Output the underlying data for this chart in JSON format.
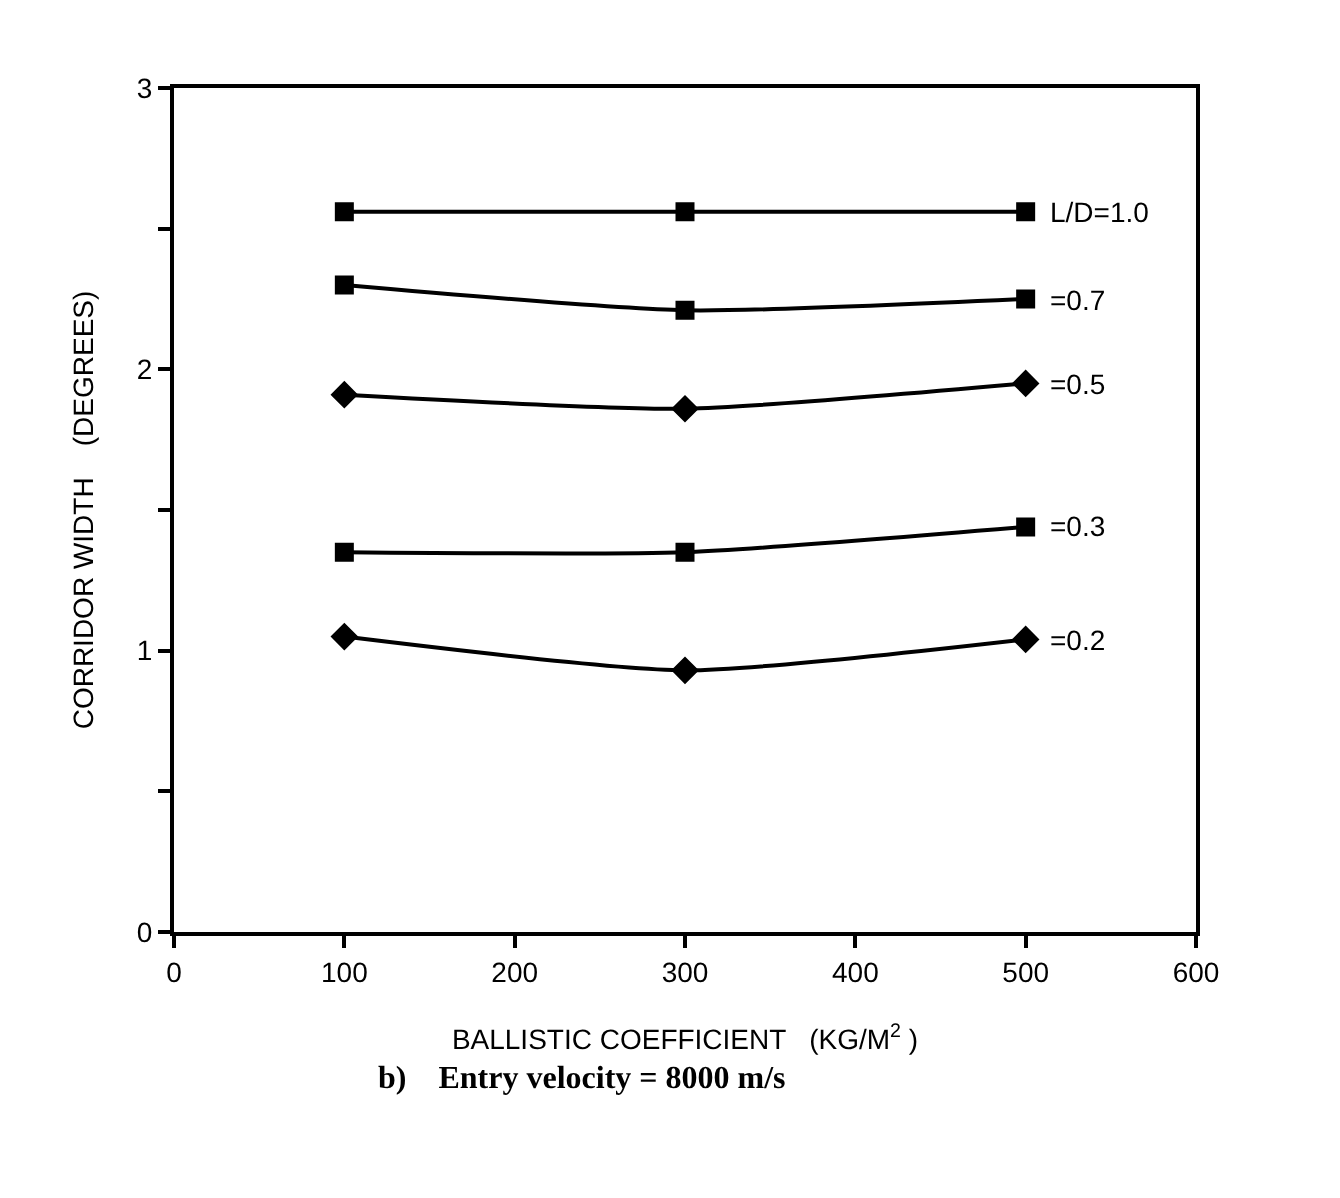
{
  "chart_data": {
    "type": "line",
    "xlabel": "BALLISTIC COEFFICIENT   (KG/M$^{2}$ )",
    "ylabel": "CORRIDOR WIDTH    (DEGREES)",
    "annotations": [
      "b)    Entry velocity = 8000 m/s"
    ],
    "x": [
      100,
      300,
      500
    ],
    "series": [
      {
        "name": "L/D=1.0",
        "color": "#000000",
        "marker": "square",
        "values": [
          2.56,
          2.56,
          2.56
        ]
      },
      {
        "name": "=0.7",
        "color": "#000000",
        "marker": "square",
        "values": [
          2.3,
          2.21,
          2.25
        ]
      },
      {
        "name": "=0.5",
        "color": "#000000",
        "marker": "diamond",
        "values": [
          1.91,
          1.86,
          1.95
        ]
      },
      {
        "name": "=0.3",
        "color": "#000000",
        "marker": "square",
        "values": [
          1.35,
          1.35,
          1.44
        ]
      },
      {
        "name": "=0.2",
        "color": "#000000",
        "marker": "diamond",
        "values": [
          1.05,
          0.93,
          1.04
        ]
      }
    ],
    "xlim": [
      0,
      600
    ],
    "xticks": [
      0,
      100,
      200,
      300,
      400,
      500,
      600
    ],
    "ylim": [
      0,
      3
    ],
    "yticks": [
      0,
      {
        "value": 0.5,
        "label": null
      },
      1,
      {
        "value": 1.5,
        "label": null
      },
      2,
      {
        "value": 2.5,
        "label": null
      },
      3
    ],
    "legend": false,
    "line_style": "solid"
  }
}
